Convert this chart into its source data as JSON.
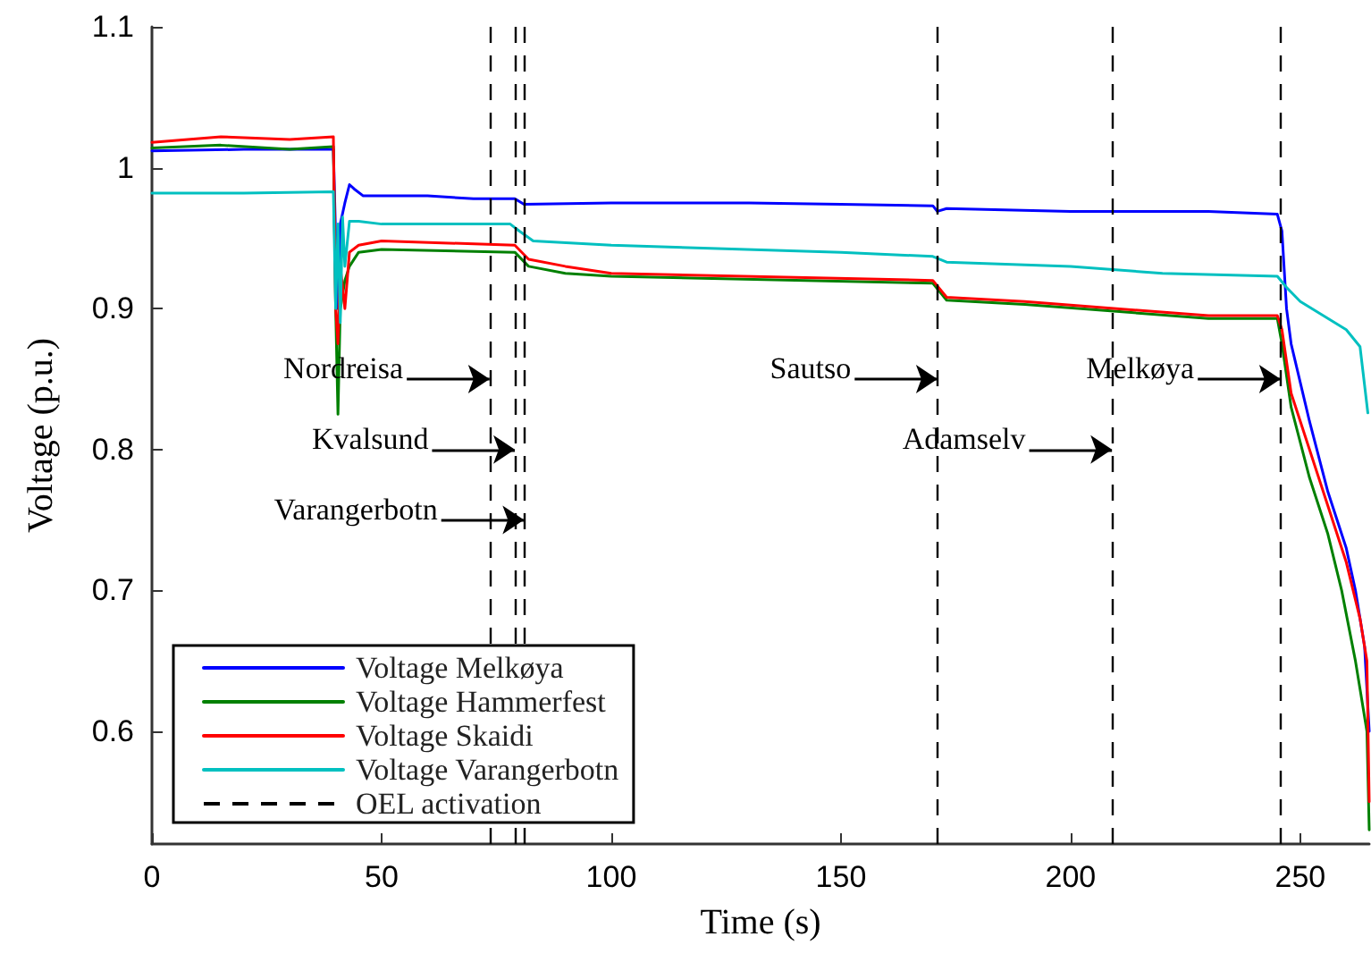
{
  "chart_data": {
    "type": "line",
    "xlabel": "Time (s)",
    "ylabel": "Voltage (p.u.)",
    "xlim": [
      0,
      265
    ],
    "ylim": [
      0.52,
      1.1
    ],
    "xticks": [
      0,
      50,
      100,
      150,
      200,
      250
    ],
    "yticks": [
      0.6,
      0.7,
      0.8,
      0.9,
      1,
      1.1
    ],
    "grid": false,
    "legend": "bottom left",
    "marker": "none",
    "line_style": "solid",
    "series": [
      {
        "name": "Voltage Melkøya",
        "color": "#0000ff",
        "x": [
          0,
          20,
          39.5,
          40,
          40.5,
          41,
          42,
          43,
          44,
          46,
          50,
          60,
          70,
          79,
          81,
          100,
          130,
          150,
          170,
          171,
          173,
          200,
          230,
          245,
          246,
          247,
          248,
          252,
          256,
          260,
          262,
          264,
          265
        ],
        "values": [
          1.012,
          1.013,
          1.013,
          0.95,
          0.9,
          0.96,
          0.975,
          0.988,
          0.985,
          0.98,
          0.98,
          0.98,
          0.978,
          0.978,
          0.974,
          0.975,
          0.975,
          0.974,
          0.973,
          0.969,
          0.971,
          0.969,
          0.969,
          0.967,
          0.955,
          0.9,
          0.875,
          0.82,
          0.77,
          0.73,
          0.7,
          0.66,
          0.6
        ]
      },
      {
        "name": "Voltage Hammerfest",
        "color": "#008000",
        "x": [
          0,
          15,
          30,
          39.5,
          40,
          40.5,
          41,
          42,
          43,
          45,
          50,
          79,
          82,
          90,
          100,
          170,
          173,
          190,
          210,
          230,
          245,
          246,
          248,
          252,
          256,
          259,
          262,
          264.5,
          265
        ],
        "values": [
          1.014,
          1.016,
          1.013,
          1.015,
          0.9,
          0.825,
          0.9,
          0.92,
          0.93,
          0.94,
          0.942,
          0.94,
          0.93,
          0.925,
          0.923,
          0.918,
          0.906,
          0.903,
          0.898,
          0.893,
          0.893,
          0.875,
          0.83,
          0.78,
          0.74,
          0.7,
          0.65,
          0.6,
          0.53
        ]
      },
      {
        "name": "Voltage Skaidi",
        "color": "#ff0000",
        "x": [
          0,
          15,
          30,
          39.5,
          40,
          40.5,
          41,
          42,
          43,
          45,
          50,
          79,
          82,
          90,
          100,
          170,
          173,
          190,
          210,
          230,
          245,
          246,
          248,
          252,
          256,
          260,
          263,
          264.5,
          265
        ],
        "values": [
          1.018,
          1.022,
          1.02,
          1.022,
          0.9,
          0.875,
          0.93,
          0.9,
          0.94,
          0.945,
          0.948,
          0.945,
          0.935,
          0.93,
          0.925,
          0.92,
          0.908,
          0.905,
          0.9,
          0.895,
          0.895,
          0.885,
          0.84,
          0.8,
          0.76,
          0.72,
          0.68,
          0.65,
          0.55
        ]
      },
      {
        "name": "Voltage Varangerbotn",
        "color": "#00c0c0",
        "x": [
          0,
          20,
          39.5,
          40,
          40.5,
          41,
          41.5,
          42,
          43,
          45,
          50,
          78,
          80,
          83,
          100,
          150,
          170,
          173,
          200,
          220,
          245,
          247,
          250,
          255,
          260,
          263,
          264.7
        ],
        "values": [
          0.982,
          0.982,
          0.983,
          0.9,
          0.96,
          0.89,
          0.965,
          0.93,
          0.962,
          0.962,
          0.96,
          0.96,
          0.955,
          0.948,
          0.945,
          0.94,
          0.937,
          0.933,
          0.93,
          0.925,
          0.923,
          0.915,
          0.905,
          0.895,
          0.885,
          0.873,
          0.826
        ]
      }
    ],
    "ref_lines": [
      {
        "axis": "x",
        "value": 73.5,
        "label": "OEL activation",
        "color": "#000000",
        "line_style": "dashed"
      },
      {
        "axis": "x",
        "value": 79,
        "color": "#000000",
        "line_style": "dashed"
      },
      {
        "axis": "x",
        "value": 81,
        "color": "#000000",
        "line_style": "dashed"
      },
      {
        "axis": "x",
        "value": 171,
        "color": "#000000",
        "line_style": "dashed"
      },
      {
        "axis": "x",
        "value": 209,
        "color": "#000000",
        "line_style": "dashed"
      },
      {
        "axis": "x",
        "value": 245.7,
        "color": "#000000",
        "line_style": "dashed"
      }
    ],
    "annotations": [
      {
        "text": "Nordreisa",
        "x": 73.5,
        "y": 0.85
      },
      {
        "text": "Kvalsund",
        "x": 79,
        "y": 0.8
      },
      {
        "text": "Varangerbotn",
        "x": 81,
        "y": 0.75
      },
      {
        "text": "Sautso",
        "x": 171,
        "y": 0.85
      },
      {
        "text": "Adamselv",
        "x": 209,
        "y": 0.8
      },
      {
        "text": "Melkøya",
        "x": 245.7,
        "y": 0.85
      }
    ]
  }
}
